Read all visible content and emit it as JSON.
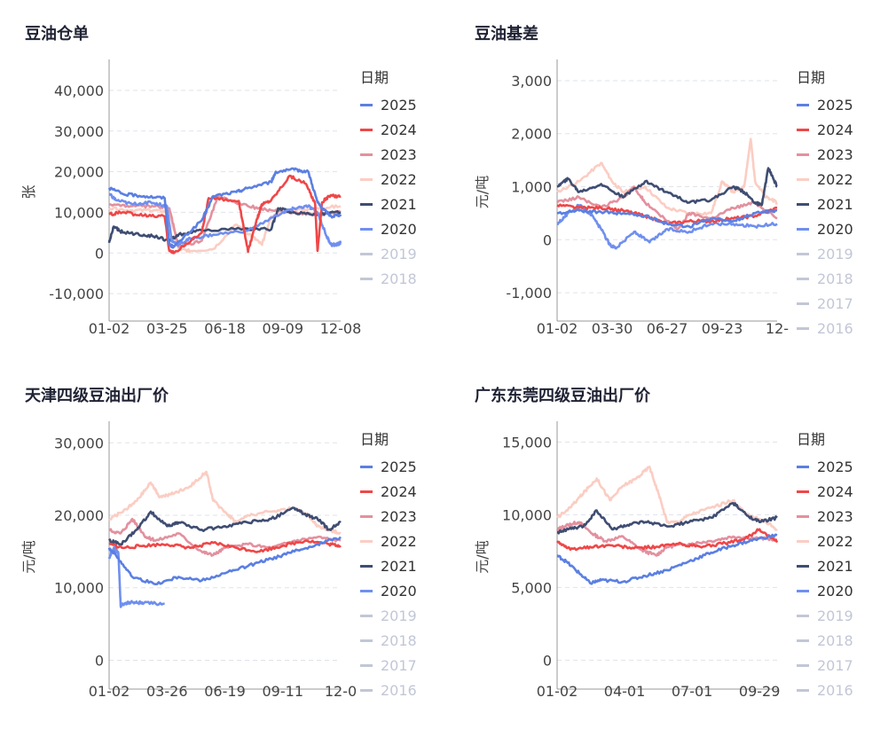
{
  "colors": {
    "2025": "#5b7fe2",
    "2024": "#ef4748",
    "2023": "#e3909e",
    "2022": "#fbcdc3",
    "2021": "#3f4d72",
    "2020": "#6f8ff0",
    "2019": "#c2c7d6",
    "2018": "#c2c7d6",
    "2017": "#c2c7d6",
    "2016": "#c2c7d6"
  },
  "legend": {
    "title": "日期",
    "items": [
      "2025",
      "2024",
      "2023",
      "2022",
      "2021",
      "2020",
      "2019",
      "2018",
      "2017",
      "2016"
    ],
    "disabled": [
      "2019",
      "2018",
      "2017",
      "2016"
    ]
  },
  "chart_data": [
    {
      "type": "line",
      "title": "豆油仓单",
      "ylabel": "张",
      "ylim": [
        -15000,
        45000
      ],
      "yticks": [
        -10000,
        0,
        10000,
        20000,
        30000,
        40000
      ],
      "ytick_labels": [
        "-10,000",
        "0",
        "10,000",
        "20,000",
        "30,000",
        "40,000"
      ],
      "x_ticks": [
        "01-02",
        "03-25",
        "06-18",
        "09-09",
        "12-08"
      ],
      "legend_visible": [
        "2025",
        "2024",
        "2023",
        "2022",
        "2021",
        "2020",
        "2019",
        "2018"
      ],
      "series": [
        {
          "name": "2020",
          "x": [
            0,
            0.03,
            0.1,
            0.18,
            0.25,
            0.27,
            0.3,
            0.35,
            0.45,
            0.6,
            0.75,
            0.8,
            0.86,
            0.9,
            0.94,
            0.96,
            0.98,
            1
          ],
          "values": [
            14500,
            13000,
            12000,
            12500,
            11500,
            3000,
            2000,
            3500,
            4500,
            5500,
            10000,
            11000,
            11500,
            10000,
            4000,
            2000,
            2000,
            2500
          ]
        },
        {
          "name": "2021",
          "x": [
            0,
            0.02,
            0.06,
            0.15,
            0.2,
            0.26,
            0.3,
            0.4,
            0.6,
            0.7,
            0.73,
            0.8,
            0.9,
            1
          ],
          "values": [
            2500,
            6500,
            5000,
            4500,
            4000,
            3000,
            4500,
            5500,
            6000,
            5800,
            11000,
            10000,
            9500,
            10000
          ]
        },
        {
          "name": "2022",
          "x": [
            0,
            0.1,
            0.2,
            0.26,
            0.3,
            0.35,
            0.45,
            0.55,
            0.62,
            0.66,
            0.7,
            0.8,
            0.9,
            1
          ],
          "values": [
            11000,
            10500,
            10500,
            10000,
            1000,
            500,
            1000,
            7000,
            4000,
            2000,
            9000,
            10500,
            11000,
            11500
          ]
        },
        {
          "name": "2023",
          "x": [
            0,
            0.1,
            0.2,
            0.26,
            0.3,
            0.4,
            0.47,
            0.6,
            0.7,
            0.8,
            0.9,
            1
          ],
          "values": [
            12000,
            11500,
            11500,
            11000,
            1500,
            3000,
            14000,
            11500,
            10500,
            10000,
            9500,
            10000
          ]
        },
        {
          "name": "2024",
          "x": [
            0,
            0.06,
            0.15,
            0.24,
            0.26,
            0.28,
            0.4,
            0.43,
            0.56,
            0.6,
            0.64,
            0.66,
            0.7,
            0.78,
            0.85,
            0.89,
            0.9,
            0.92,
            0.95,
            1
          ],
          "values": [
            9500,
            10000,
            9200,
            9000,
            500,
            0,
            5000,
            13500,
            12800,
            300,
            8500,
            12000,
            13000,
            19000,
            17000,
            12000,
            500,
            12500,
            14000,
            14000
          ]
        },
        {
          "name": "2025",
          "x": [
            0,
            0.06,
            0.15,
            0.24,
            0.26,
            0.28,
            0.4,
            0.45,
            0.55,
            0.6,
            0.7,
            0.72,
            0.8,
            0.86,
            0.9,
            0.92,
            0.96,
            1
          ],
          "values": [
            16000,
            14500,
            14000,
            13500,
            2000,
            1500,
            8000,
            14000,
            15000,
            16000,
            17500,
            20000,
            20500,
            20000,
            12500,
            11000,
            9000,
            9500
          ]
        }
      ]
    },
    {
      "type": "line",
      "title": "豆油基差",
      "ylabel": "元/吨",
      "ylim": [
        -1400,
        3200
      ],
      "yticks": [
        -1000,
        0,
        1000,
        2000,
        3000
      ],
      "ytick_labels": [
        "-1,000",
        "0",
        "1,000",
        "2,000",
        "3,000"
      ],
      "x_ticks": [
        "01-02",
        "03-30",
        "06-27",
        "09-23",
        "12-"
      ],
      "legend_visible": [
        "2025",
        "2024",
        "2023",
        "2022",
        "2021",
        "2020",
        "2019",
        "2018",
        "2017",
        "2016"
      ],
      "series": [
        {
          "name": "2020",
          "x": [
            0,
            0.05,
            0.1,
            0.15,
            0.2,
            0.24,
            0.27,
            0.35,
            0.42,
            0.5,
            0.6,
            0.7,
            0.8,
            0.9,
            1
          ],
          "values": [
            300,
            500,
            650,
            500,
            200,
            -100,
            -150,
            150,
            -50,
            200,
            150,
            300,
            300,
            250,
            300
          ]
        },
        {
          "name": "2021",
          "x": [
            0,
            0.05,
            0.1,
            0.2,
            0.3,
            0.4,
            0.5,
            0.6,
            0.7,
            0.8,
            0.85,
            0.9,
            0.93,
            0.96,
            1
          ],
          "values": [
            1000,
            1150,
            900,
            1050,
            800,
            1100,
            900,
            700,
            750,
            1000,
            900,
            700,
            650,
            1350,
            1000
          ]
        },
        {
          "name": "2022",
          "x": [
            0,
            0.1,
            0.2,
            0.25,
            0.3,
            0.4,
            0.5,
            0.6,
            0.7,
            0.75,
            0.8,
            0.85,
            0.88,
            0.9,
            0.95,
            1
          ],
          "values": [
            900,
            1100,
            1450,
            1100,
            900,
            1000,
            600,
            500,
            500,
            1100,
            900,
            1000,
            1900,
            1100,
            800,
            700
          ]
        },
        {
          "name": "2023",
          "x": [
            0,
            0.1,
            0.2,
            0.3,
            0.35,
            0.4,
            0.5,
            0.55,
            0.6,
            0.7,
            0.8,
            0.9,
            1
          ],
          "values": [
            700,
            800,
            600,
            800,
            1000,
            700,
            350,
            200,
            500,
            400,
            600,
            700,
            400
          ]
        },
        {
          "name": "2024",
          "x": [
            0,
            0.1,
            0.2,
            0.3,
            0.4,
            0.5,
            0.6,
            0.7,
            0.8,
            0.9,
            1
          ],
          "values": [
            650,
            600,
            600,
            550,
            450,
            300,
            350,
            350,
            400,
            450,
            600
          ]
        },
        {
          "name": "2025",
          "x": [
            0,
            0.1,
            0.2,
            0.3,
            0.4,
            0.5,
            0.6,
            0.7,
            0.8,
            0.9,
            1
          ],
          "values": [
            500,
            550,
            520,
            500,
            450,
            300,
            250,
            400,
            350,
            500,
            550
          ]
        }
      ]
    },
    {
      "type": "line",
      "title": "天津四级豆油出厂价",
      "ylabel": "元/吨",
      "ylim": [
        -3000,
        31500
      ],
      "yticks": [
        0,
        10000,
        20000,
        30000
      ],
      "ytick_labels": [
        "0",
        "10,000",
        "20,000",
        "30,000"
      ],
      "x_ticks": [
        "01-02",
        "03-26",
        "06-19",
        "09-11",
        "12-0"
      ],
      "legend_visible": [
        "2025",
        "2024",
        "2023",
        "2022",
        "2021",
        "2020",
        "2019",
        "2018",
        "2017",
        "2016"
      ],
      "series": [
        {
          "name": "2020",
          "x": [
            0,
            0.02,
            0.04,
            0.05,
            0.06,
            0.1,
            0.15,
            0.24
          ],
          "values": [
            14000,
            15500,
            14800,
            7500,
            7800,
            8000,
            7900,
            7800
          ]
        },
        {
          "name": "2022",
          "x": [
            0,
            0.06,
            0.12,
            0.18,
            0.22,
            0.28,
            0.35,
            0.42,
            0.45,
            0.5,
            0.55,
            0.6,
            0.7,
            0.8,
            0.86,
            0.9,
            0.95,
            1
          ],
          "values": [
            19500,
            20500,
            22000,
            24500,
            22500,
            23000,
            24000,
            26000,
            22000,
            20500,
            19000,
            20000,
            20500,
            21000,
            20000,
            18500,
            18000,
            17500
          ]
        },
        {
          "name": "2021",
          "x": [
            0,
            0.05,
            0.12,
            0.18,
            0.25,
            0.3,
            0.4,
            0.5,
            0.6,
            0.7,
            0.8,
            0.85,
            0.9,
            0.95,
            1
          ],
          "values": [
            16500,
            16000,
            18000,
            20500,
            18500,
            19000,
            18000,
            18500,
            19000,
            19500,
            21000,
            20000,
            19500,
            18000,
            19000
          ]
        },
        {
          "name": "2023",
          "x": [
            0,
            0.05,
            0.1,
            0.16,
            0.2,
            0.3,
            0.4,
            0.45,
            0.5,
            0.6,
            0.7,
            0.8,
            0.9,
            1
          ],
          "values": [
            18000,
            17500,
            19500,
            17000,
            16500,
            17500,
            15000,
            14500,
            15500,
            16000,
            15500,
            16500,
            17000,
            16500
          ]
        },
        {
          "name": "2024",
          "x": [
            0,
            0.06,
            0.15,
            0.25,
            0.35,
            0.45,
            0.55,
            0.65,
            0.75,
            0.85,
            0.95,
            1
          ],
          "values": [
            16000,
            15500,
            15800,
            16000,
            15500,
            16200,
            15500,
            15000,
            15800,
            16500,
            16000,
            15800
          ]
        },
        {
          "name": "2025",
          "x": [
            0,
            0.03,
            0.1,
            0.2,
            0.3,
            0.4,
            0.5,
            0.6,
            0.7,
            0.8,
            0.9,
            1
          ],
          "values": [
            15500,
            14500,
            11500,
            10500,
            11500,
            11000,
            12000,
            13000,
            14000,
            15000,
            16000,
            17000
          ]
        }
      ]
    },
    {
      "type": "line",
      "title": "广东东莞四级豆油出厂价",
      "ylabel": "元/吨",
      "ylim": [
        -1500,
        15700
      ],
      "yticks": [
        0,
        5000,
        10000,
        15000
      ],
      "ytick_labels": [
        "0",
        "5,000",
        "10,000",
        "15,000"
      ],
      "x_ticks": [
        "01-02",
        "04-01",
        "07-01",
        "09-29"
      ],
      "legend_visible": [
        "2025",
        "2024",
        "2023",
        "2022",
        "2021",
        "2020",
        "2019",
        "2018",
        "2017",
        "2016"
      ],
      "series": [
        {
          "name": "2022",
          "x": [
            0,
            0.06,
            0.12,
            0.18,
            0.24,
            0.3,
            0.36,
            0.42,
            0.46,
            0.5,
            0.55,
            0.6,
            0.7,
            0.8,
            0.86,
            0.9,
            0.95,
            1
          ],
          "values": [
            9800,
            10500,
            11500,
            12500,
            11000,
            12000,
            12500,
            13300,
            11500,
            9500,
            9500,
            10000,
            10500,
            11000,
            10000,
            9800,
            9500,
            9000
          ]
        },
        {
          "name": "2021",
          "x": [
            0,
            0.05,
            0.12,
            0.18,
            0.25,
            0.32,
            0.4,
            0.5,
            0.6,
            0.7,
            0.8,
            0.86,
            0.92,
            1
          ],
          "values": [
            8800,
            9000,
            9200,
            10300,
            9000,
            9300,
            9500,
            9200,
            9500,
            9800,
            10800,
            10000,
            9500,
            9800
          ]
        },
        {
          "name": "2023",
          "x": [
            0,
            0.05,
            0.1,
            0.16,
            0.22,
            0.3,
            0.38,
            0.45,
            0.5,
            0.6,
            0.7,
            0.8,
            0.9,
            1
          ],
          "values": [
            9000,
            9300,
            9500,
            8700,
            8200,
            8500,
            7600,
            7200,
            7800,
            8000,
            8200,
            8500,
            8400,
            8300
          ]
        },
        {
          "name": "2024",
          "x": [
            0,
            0.06,
            0.15,
            0.25,
            0.35,
            0.45,
            0.55,
            0.65,
            0.75,
            0.85,
            0.92,
            1
          ],
          "values": [
            8200,
            7600,
            7800,
            7900,
            7700,
            7800,
            8000,
            7800,
            8000,
            8300,
            9000,
            8100
          ]
        },
        {
          "name": "2025",
          "x": [
            0,
            0.04,
            0.1,
            0.15,
            0.2,
            0.3,
            0.4,
            0.5,
            0.6,
            0.7,
            0.8,
            0.9,
            1
          ],
          "values": [
            7200,
            6800,
            6000,
            5300,
            5500,
            5400,
            5800,
            6200,
            6800,
            7400,
            7900,
            8300,
            8600
          ]
        }
      ]
    }
  ]
}
